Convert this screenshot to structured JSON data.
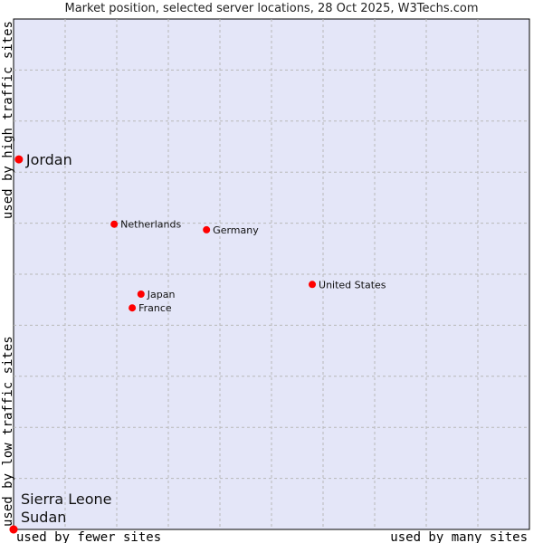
{
  "chart_data": {
    "type": "scatter",
    "title": "Market position, selected server locations, 28 Oct 2025, W3Techs.com",
    "xlabel_left": "used by fewer sites",
    "xlabel_right": "used by many sites",
    "ylabel_bottom": "used by low traffic sites",
    "ylabel_top": "used by high traffic sites",
    "xlim": [
      0,
      100
    ],
    "ylim": [
      0,
      100
    ],
    "grid": true,
    "point_color": "#ff0000",
    "background": "#e4e6f8",
    "points": [
      {
        "label": "Jordan",
        "x": 0.5,
        "y": 72.5,
        "highlight": true
      },
      {
        "label": "Netherlands",
        "x": 19.5,
        "y": 59.8
      },
      {
        "label": "Germany",
        "x": 37.4,
        "y": 58.7
      },
      {
        "label": "United States",
        "x": 57.9,
        "y": 48.0
      },
      {
        "label": "Japan",
        "x": 24.7,
        "y": 46.1
      },
      {
        "label": "France",
        "x": 23.0,
        "y": 43.4
      },
      {
        "label": "Sudan",
        "x": 0,
        "y": 0,
        "highlight": true
      },
      {
        "label": "Sierra Leone",
        "x": 0,
        "y": 0,
        "highlight": true
      }
    ]
  }
}
